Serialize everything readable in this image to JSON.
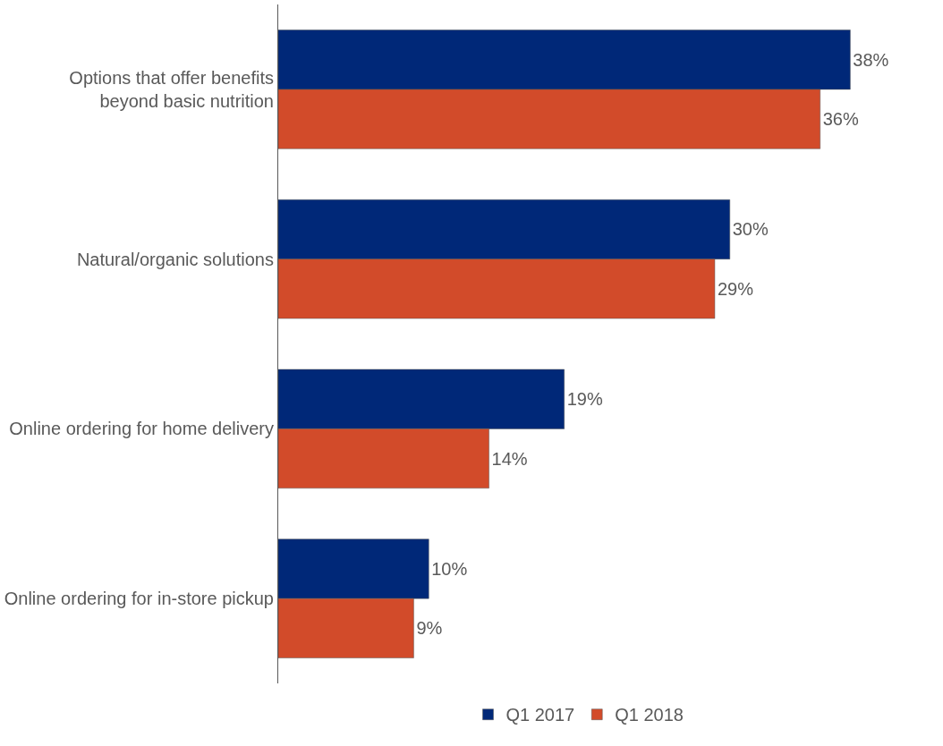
{
  "chart_data": {
    "type": "bar",
    "orientation": "horizontal",
    "categories": [
      "Options that offer benefits\nbeyond basic nutrition",
      "Natural/organic solutions",
      "Online ordering for home delivery",
      "Online ordering for in-store pickup"
    ],
    "series": [
      {
        "name": "Q1 2017",
        "color": "#002878",
        "values": [
          38,
          30,
          19,
          10
        ],
        "value_labels": [
          "38%",
          "30%",
          "19%",
          "10%"
        ]
      },
      {
        "name": "Q1 2018",
        "color": "#d24b2a",
        "values": [
          36,
          29,
          14,
          9
        ],
        "value_labels": [
          "36%",
          "29%",
          "14%",
          "9%"
        ]
      }
    ],
    "tick_labels": "y",
    "grid": false,
    "legend": "bottom"
  }
}
